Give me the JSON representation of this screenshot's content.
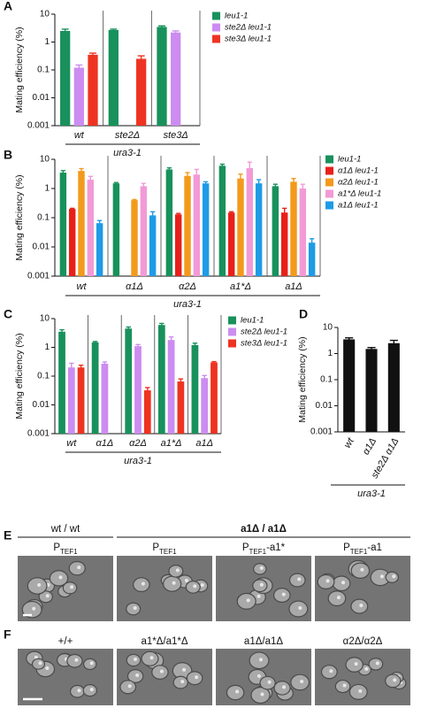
{
  "chart_data": [
    {
      "panel": "A",
      "type": "bar",
      "ylabel": "Mating efficiency (%)",
      "log": true,
      "ylim": [
        0.001,
        10
      ],
      "yticks": [
        0.001,
        0.01,
        0.1,
        1,
        10
      ],
      "categories": [
        "wt",
        "ste2Δ",
        "ste3Δ"
      ],
      "group_label": "ura3-1",
      "legend": "right",
      "series": [
        {
          "name": "leu1-1",
          "color": "#18915c",
          "values": [
            2.5,
            2.7,
            3.5
          ],
          "errors": [
            0.4,
            0.2,
            0.3
          ]
        },
        {
          "name": "ste2Δ leu1-1",
          "color": "#cc8cf0",
          "values": [
            0.12,
            null,
            2.2
          ],
          "errors": [
            0.03,
            null,
            0.3
          ]
        },
        {
          "name": "ste3Δ leu1-1",
          "color": "#ee3322",
          "values": [
            0.35,
            0.25,
            null
          ],
          "errors": [
            0.05,
            0.07,
            null
          ]
        }
      ]
    },
    {
      "panel": "B",
      "type": "bar",
      "ylabel": "Mating efficiency (%)",
      "log": true,
      "ylim": [
        0.001,
        10
      ],
      "yticks": [
        0.001,
        0.01,
        0.1,
        1,
        10
      ],
      "categories": [
        "wt",
        "α1Δ",
        "α2Δ",
        "a1*Δ",
        "a1Δ"
      ],
      "group_label": "ura3-1",
      "legend": "right",
      "series": [
        {
          "name": "leu1-1",
          "color": "#18915c",
          "values": [
            3.5,
            1.5,
            4.5,
            6,
            1.2
          ],
          "errors": [
            0.6,
            0.1,
            0.6,
            0.8,
            0.2
          ]
        },
        {
          "name": "α1Δ leu1-1",
          "color": "#e8201a",
          "values": [
            0.2,
            null,
            0.13,
            0.15,
            0.15
          ],
          "errors": [
            0.01,
            null,
            0.01,
            0.01,
            0.06
          ]
        },
        {
          "name": "α2Δ leu1-1",
          "color": "#f39a1c",
          "values": [
            4,
            0.4,
            2.7,
            2.2,
            1.7
          ],
          "errors": [
            0.8,
            0.02,
            0.8,
            0.9,
            0.5
          ]
        },
        {
          "name": "a1*Δ leu1-1",
          "color": "#f29ad6",
          "values": [
            2,
            1.2,
            3,
            5,
            1
          ],
          "errors": [
            0.6,
            0.3,
            1.5,
            3,
            0.4
          ]
        },
        {
          "name": "a1Δ leu1-1",
          "color": "#1e9be6",
          "values": [
            0.065,
            0.12,
            1.5,
            1.5,
            0.014
          ],
          "errors": [
            0.015,
            0.04,
            0.2,
            0.5,
            0.005
          ]
        }
      ]
    },
    {
      "panel": "C",
      "type": "bar",
      "ylabel": "Mating efficiency (%)",
      "log": true,
      "ylim": [
        0.001,
        10
      ],
      "yticks": [
        0.001,
        0.01,
        0.1,
        1,
        10
      ],
      "categories": [
        "wt",
        "α1Δ",
        "α2Δ",
        "a1*Δ",
        "a1Δ"
      ],
      "group_label": "ura3-1",
      "legend": "right",
      "series": [
        {
          "name": "leu1-1",
          "color": "#18915c",
          "values": [
            3.5,
            1.5,
            4.5,
            6,
            1.2
          ],
          "errors": [
            0.6,
            0.1,
            0.6,
            0.8,
            0.2
          ]
        },
        {
          "name": "ste2Δ leu1-1",
          "color": "#cc8cf0",
          "values": [
            0.2,
            0.27,
            1.1,
            1.8,
            0.085
          ],
          "errors": [
            0.08,
            0.04,
            0.15,
            0.5,
            0.02
          ]
        },
        {
          "name": "ste3Δ leu1-1",
          "color": "#ee3322",
          "values": [
            0.2,
            null,
            0.032,
            0.065,
            0.3
          ],
          "errors": [
            0.04,
            null,
            0.008,
            0.015,
            0.02
          ]
        }
      ]
    },
    {
      "panel": "D",
      "type": "bar",
      "ylabel": "Mating efficiency (%)",
      "log": true,
      "ylim": [
        0.001,
        10
      ],
      "yticks": [
        0.001,
        0.01,
        0.1,
        1,
        10
      ],
      "categories": [
        "wt",
        "α1Δ",
        "ste2Δ α1Δ"
      ],
      "group_label": "ura3-1",
      "color": "#111111",
      "values": [
        3.5,
        1.5,
        2.5
      ],
      "errors": [
        0.5,
        0.2,
        0.7
      ]
    }
  ],
  "panel_e": {
    "letter": "E",
    "left_header": "wt / wt",
    "right_header": "a1Δ / a1Δ",
    "images": [
      {
        "p": "P",
        "sub": "TEF1"
      },
      {
        "p": "P",
        "sub": "TEF1"
      },
      {
        "p": "P",
        "sub": "TEF1",
        "suffix": "-a1*"
      },
      {
        "p": "P",
        "sub": "TEF1",
        "suffix": "-a1"
      }
    ]
  },
  "panel_f": {
    "letter": "F",
    "labels": [
      "+/+",
      "a1*Δ/a1*Δ",
      "a1Δ/a1Δ",
      "α2Δ/α2Δ"
    ]
  }
}
